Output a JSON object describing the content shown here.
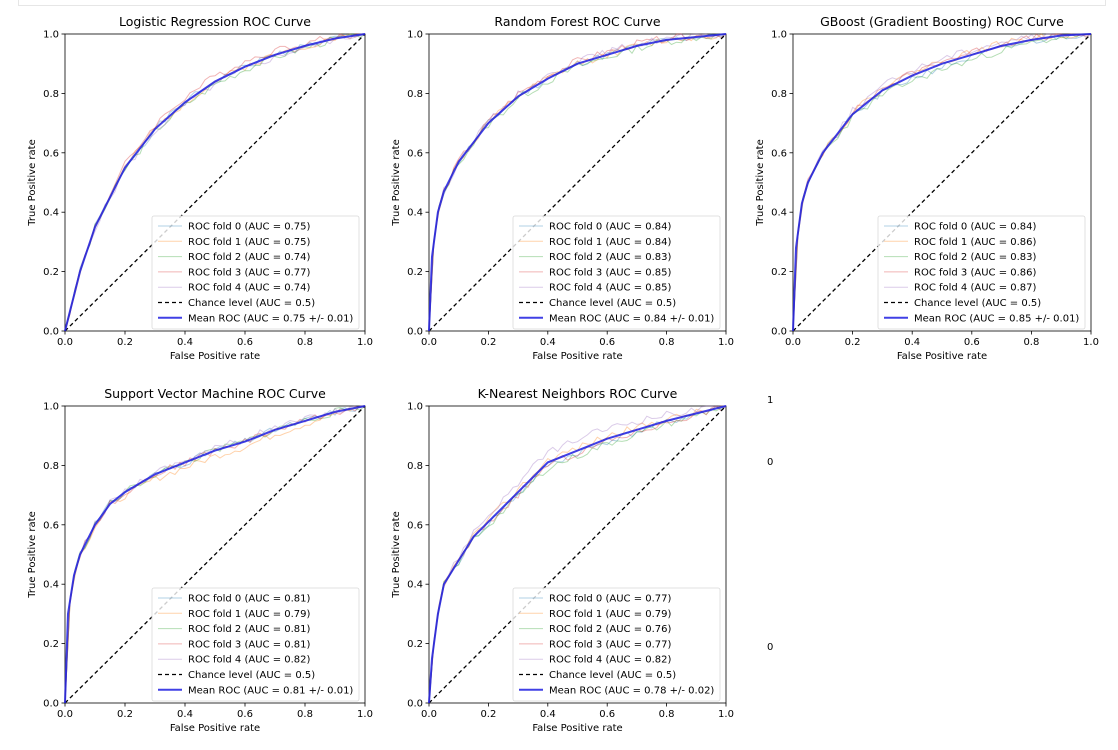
{
  "colors": {
    "folds": [
      "#1f77b4",
      "#ff7f0e",
      "#2ca02c",
      "#d62728",
      "#9467bd"
    ],
    "mean": "#1f1fe0",
    "chance": "#000000"
  },
  "stray_labels": [
    "1",
    "0",
    "0"
  ],
  "chart_data": [
    {
      "type": "line",
      "title": "Logistic Regression ROC Curve",
      "xlabel": "False Positive rate",
      "ylabel": "True Positive rate",
      "xlim": [
        0,
        1
      ],
      "ylim": [
        0,
        1
      ],
      "xticks": [
        "0.0",
        "0.2",
        "0.4",
        "0.6",
        "0.8",
        "1.0"
      ],
      "yticks": [
        "0.0",
        "0.2",
        "0.4",
        "0.6",
        "0.8",
        "1.0"
      ],
      "legend_position": "lower-right",
      "legend": [
        "ROC fold 0 (AUC = 0.75)",
        "ROC fold 1 (AUC = 0.75)",
        "ROC fold 2 (AUC = 0.74)",
        "ROC fold 3 (AUC = 0.77)",
        "ROC fold 4 (AUC = 0.74)",
        "Chance level (AUC = 0.5)",
        "Mean ROC (AUC = 0.75 +/- 0.01)"
      ],
      "fold_aucs": [
        0.75,
        0.75,
        0.74,
        0.77,
        0.74
      ],
      "mean_auc": 0.75,
      "mean_roc": {
        "x": [
          0,
          0.05,
          0.1,
          0.2,
          0.3,
          0.4,
          0.5,
          0.6,
          0.7,
          0.8,
          0.9,
          1.0
        ],
        "y": [
          0,
          0.2,
          0.35,
          0.55,
          0.68,
          0.77,
          0.84,
          0.89,
          0.93,
          0.96,
          0.985,
          1.0
        ]
      }
    },
    {
      "type": "line",
      "title": "Random Forest ROC Curve",
      "xlabel": "False Positive rate",
      "ylabel": "True Positive rate",
      "xlim": [
        0,
        1
      ],
      "ylim": [
        0,
        1
      ],
      "xticks": [
        "0.0",
        "0.2",
        "0.4",
        "0.6",
        "0.8",
        "1.0"
      ],
      "yticks": [
        "0.0",
        "0.2",
        "0.4",
        "0.6",
        "0.8",
        "1.0"
      ],
      "legend_position": "lower-right",
      "legend": [
        "ROC fold 0 (AUC = 0.84)",
        "ROC fold 1 (AUC = 0.84)",
        "ROC fold 2 (AUC = 0.83)",
        "ROC fold 3 (AUC = 0.85)",
        "ROC fold 4 (AUC = 0.85)",
        "Chance level (AUC = 0.5)",
        "Mean ROC (AUC = 0.84 +/- 0.01)"
      ],
      "fold_aucs": [
        0.84,
        0.84,
        0.83,
        0.85,
        0.85
      ],
      "mean_auc": 0.84,
      "mean_roc": {
        "x": [
          0,
          0.01,
          0.03,
          0.05,
          0.1,
          0.2,
          0.3,
          0.4,
          0.5,
          0.6,
          0.7,
          0.8,
          0.9,
          1.0
        ],
        "y": [
          0,
          0.25,
          0.4,
          0.47,
          0.57,
          0.7,
          0.79,
          0.85,
          0.9,
          0.93,
          0.96,
          0.98,
          0.99,
          1.0
        ]
      }
    },
    {
      "type": "line",
      "title": "GBoost (Gradient Boosting) ROC Curve",
      "xlabel": "False Positive rate",
      "ylabel": "True Positive rate",
      "xlim": [
        0,
        1
      ],
      "ylim": [
        0,
        1
      ],
      "xticks": [
        "0.0",
        "0.2",
        "0.4",
        "0.6",
        "0.8",
        "1.0"
      ],
      "yticks": [
        "0.0",
        "0.2",
        "0.4",
        "0.6",
        "0.8",
        "1.0"
      ],
      "legend_position": "lower-right",
      "legend": [
        "ROC fold 0 (AUC = 0.84)",
        "ROC fold 1 (AUC = 0.86)",
        "ROC fold 2 (AUC = 0.83)",
        "ROC fold 3 (AUC = 0.86)",
        "ROC fold 4 (AUC = 0.87)",
        "Chance level (AUC = 0.5)",
        "Mean ROC (AUC = 0.85 +/- 0.01)"
      ],
      "fold_aucs": [
        0.84,
        0.86,
        0.83,
        0.86,
        0.87
      ],
      "mean_auc": 0.85,
      "mean_roc": {
        "x": [
          0,
          0.01,
          0.03,
          0.05,
          0.1,
          0.2,
          0.3,
          0.4,
          0.5,
          0.6,
          0.7,
          0.8,
          0.9,
          1.0
        ],
        "y": [
          0,
          0.28,
          0.43,
          0.5,
          0.6,
          0.73,
          0.81,
          0.86,
          0.9,
          0.93,
          0.96,
          0.98,
          0.995,
          1.0
        ]
      }
    },
    {
      "type": "line",
      "title": "Support Vector Machine ROC Curve",
      "xlabel": "False Positive rate",
      "ylabel": "True Positive rate",
      "xlim": [
        0,
        1
      ],
      "ylim": [
        0,
        1
      ],
      "xticks": [
        "0.0",
        "0.2",
        "0.4",
        "0.6",
        "0.8",
        "1.0"
      ],
      "yticks": [
        "0.0",
        "0.2",
        "0.4",
        "0.6",
        "0.8",
        "1.0"
      ],
      "legend_position": "lower-right",
      "legend": [
        "ROC fold 0 (AUC = 0.81)",
        "ROC fold 1 (AUC = 0.79)",
        "ROC fold 2 (AUC = 0.81)",
        "ROC fold 3 (AUC = 0.81)",
        "ROC fold 4 (AUC = 0.82)",
        "Chance level (AUC = 0.5)",
        "Mean ROC (AUC = 0.81 +/- 0.01)"
      ],
      "fold_aucs": [
        0.81,
        0.79,
        0.81,
        0.81,
        0.82
      ],
      "mean_auc": 0.81,
      "mean_roc": {
        "x": [
          0,
          0.01,
          0.03,
          0.05,
          0.1,
          0.15,
          0.2,
          0.3,
          0.4,
          0.5,
          0.6,
          0.7,
          0.8,
          0.9,
          1.0
        ],
        "y": [
          0,
          0.3,
          0.43,
          0.5,
          0.6,
          0.67,
          0.71,
          0.77,
          0.81,
          0.85,
          0.88,
          0.92,
          0.95,
          0.98,
          1.0
        ]
      }
    },
    {
      "type": "line",
      "title": "K-Nearest Neighbors ROC Curve",
      "xlabel": "False Positive rate",
      "ylabel": "True Positive rate",
      "xlim": [
        0,
        1
      ],
      "ylim": [
        0,
        1
      ],
      "xticks": [
        "0.0",
        "0.2",
        "0.4",
        "0.6",
        "0.8",
        "1.0"
      ],
      "yticks": [
        "0.0",
        "0.2",
        "0.4",
        "0.6",
        "0.8",
        "1.0"
      ],
      "legend_position": "lower-right",
      "legend": [
        "ROC fold 0 (AUC = 0.77)",
        "ROC fold 1 (AUC = 0.79)",
        "ROC fold 2 (AUC = 0.76)",
        "ROC fold 3 (AUC = 0.77)",
        "ROC fold 4 (AUC = 0.82)",
        "Chance level (AUC = 0.5)",
        "Mean ROC (AUC = 0.78 +/- 0.02)"
      ],
      "fold_aucs": [
        0.77,
        0.79,
        0.76,
        0.77,
        0.82
      ],
      "mean_auc": 0.78,
      "mean_roc": {
        "x": [
          0,
          0.01,
          0.03,
          0.05,
          0.1,
          0.15,
          0.2,
          0.3,
          0.4,
          0.5,
          0.6,
          0.7,
          0.8,
          0.9,
          1.0
        ],
        "y": [
          0,
          0.15,
          0.3,
          0.4,
          0.48,
          0.56,
          0.61,
          0.71,
          0.81,
          0.85,
          0.89,
          0.92,
          0.95,
          0.975,
          1.0
        ]
      }
    }
  ]
}
